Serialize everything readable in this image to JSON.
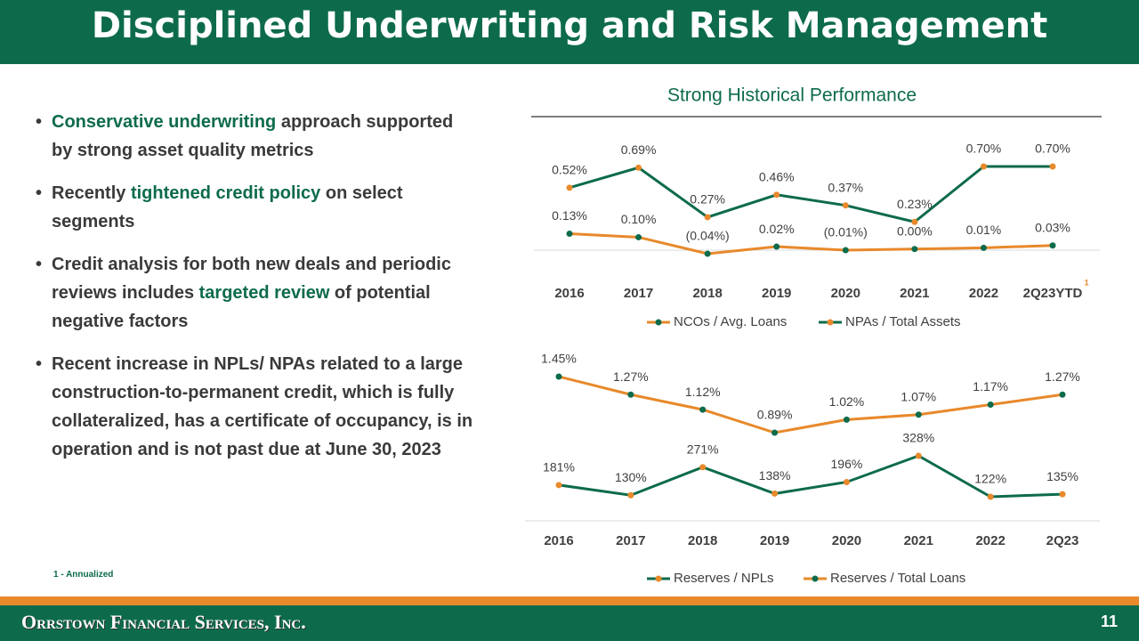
{
  "header": {
    "title": "Disciplined Underwriting and Risk Management"
  },
  "bullets": [
    {
      "parts": [
        {
          "text": "Conservative underwriting",
          "em": true
        },
        {
          "text": " approach supported by strong asset quality metrics"
        }
      ]
    },
    {
      "parts": [
        {
          "text": "Recently "
        },
        {
          "text": "tightened credit policy",
          "em": true
        },
        {
          "text": " on select segments"
        }
      ]
    },
    {
      "parts": [
        {
          "text": "Credit analysis for both new deals and periodic reviews includes "
        },
        {
          "text": "targeted review",
          "em": true
        },
        {
          "text": " of potential negative factors"
        }
      ]
    },
    {
      "parts": [
        {
          "text": "Recent increase in NPLs/ NPAs related to a large construction-to-permanent credit, which is fully collateralized, has a certificate of occupancy, is in operation and is not past due at June 30, 2023"
        }
      ]
    }
  ],
  "footnote": "1 - Annualized",
  "footer": {
    "company": "Orrstown Financial Services, Inc.",
    "page": "11"
  },
  "chart_data": [
    {
      "type": "line",
      "title": "Strong Historical Performance",
      "annotation": "1",
      "categories": [
        "2016",
        "2017",
        "2018",
        "2019",
        "2020",
        "2021",
        "2022",
        "2Q23YTD"
      ],
      "series": [
        {
          "name": "NCOs / Avg. Loans",
          "color": "#e8892b",
          "marker_color": "#0d6b4b",
          "values": [
            0.13,
            0.1,
            -0.04,
            0.02,
            -0.01,
            0.0,
            0.01,
            0.03
          ],
          "value_labels": [
            "0.13%",
            "0.10%",
            "(0.04%)",
            "0.02%",
            "(0.01%)",
            "0.00%",
            "0.01%",
            "0.03%"
          ]
        },
        {
          "name": "NPAs /  Total Assets",
          "color": "#0d6b4b",
          "marker_color": "#e8892b",
          "values": [
            0.52,
            0.69,
            0.27,
            0.46,
            0.37,
            0.23,
            0.7,
            0.7
          ],
          "value_labels": [
            "0.52%",
            "0.69%",
            "0.27%",
            "0.46%",
            "0.37%",
            "0.23%",
            "0.70%",
            "0.70%"
          ]
        }
      ]
    },
    {
      "type": "line",
      "categories": [
        "2016",
        "2017",
        "2018",
        "2019",
        "2020",
        "2021",
        "2022",
        "2Q23"
      ],
      "series": [
        {
          "name": "Reserves / NPLs",
          "color": "#0d6b4b",
          "marker_color": "#e8892b",
          "values": [
            181,
            130,
            271,
            138,
            196,
            328,
            122,
            135
          ],
          "value_labels": [
            "181%",
            "130%",
            "271%",
            "138%",
            "196%",
            "328%",
            "122%",
            "135%"
          ]
        },
        {
          "name": "Reserves / Total Loans",
          "color": "#e8892b",
          "marker_color": "#0d6b4b",
          "axis": "y2",
          "values": [
            1.45,
            1.27,
            1.12,
            0.89,
            1.02,
            1.07,
            1.17,
            1.27
          ],
          "value_labels": [
            "1.45%",
            "1.27%",
            "1.12%",
            "0.89%",
            "1.02%",
            "1.07%",
            "1.17%",
            "1.27%"
          ]
        }
      ]
    }
  ]
}
